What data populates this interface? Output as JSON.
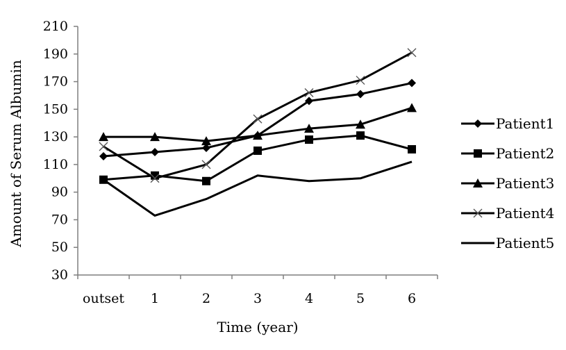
{
  "chart_data": {
    "type": "line",
    "title": "",
    "xlabel": "Time (year)",
    "ylabel": "Amount of Serum Albumin",
    "categories": [
      "outset",
      "1",
      "2",
      "3",
      "4",
      "5",
      "6"
    ],
    "ylim": [
      30,
      210
    ],
    "yticks": [
      "210",
      "190",
      "170",
      "150",
      "130",
      "110",
      "90",
      "70",
      "50",
      "30"
    ],
    "grid": false,
    "legend_position": "right",
    "series": [
      {
        "name": "Patient1",
        "marker": "diamond",
        "values": [
          116,
          119,
          122,
          131,
          156,
          161,
          169
        ]
      },
      {
        "name": "Patient2",
        "marker": "square",
        "values": [
          99,
          102,
          98,
          120,
          128,
          131,
          121
        ]
      },
      {
        "name": "Patient3",
        "marker": "triangle",
        "values": [
          130,
          130,
          127,
          131,
          136,
          139,
          151
        ]
      },
      {
        "name": "Patient4",
        "marker": "x",
        "values": [
          123,
          100,
          110,
          143,
          162,
          171,
          191
        ]
      },
      {
        "name": "Patient5",
        "marker": "none",
        "values": [
          99,
          73,
          85,
          102,
          98,
          100,
          112
        ]
      }
    ],
    "line_color": "#000000"
  }
}
